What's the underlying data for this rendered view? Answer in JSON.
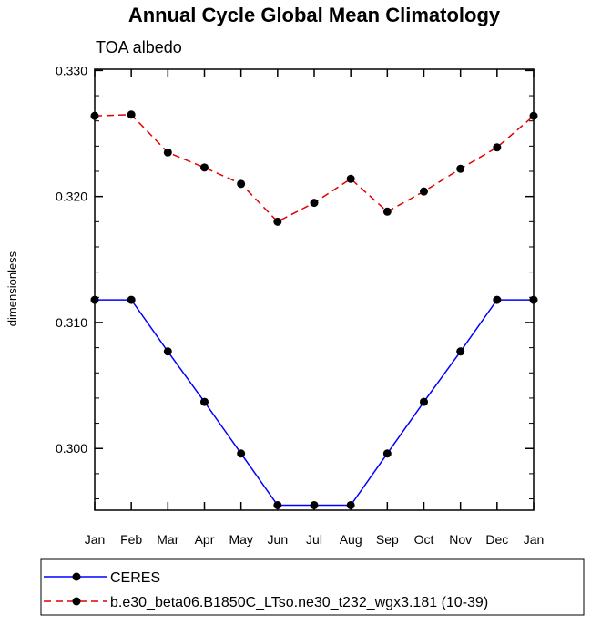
{
  "chart_data": {
    "type": "line",
    "title": "Annual Cycle Global Mean Climatology",
    "subtitle": "TOA albedo",
    "xlabel": "",
    "ylabel": "dimensionless",
    "categories": [
      "Jan",
      "Feb",
      "Mar",
      "Apr",
      "May",
      "Jun",
      "Jul",
      "Aug",
      "Sep",
      "Oct",
      "Nov",
      "Dec",
      "Jan"
    ],
    "ylim": [
      0.2951,
      0.3301
    ],
    "yticks": [
      "0.300",
      "0.310",
      "0.320",
      "0.330"
    ],
    "legend_position": "bottom",
    "grid": false,
    "series": [
      {
        "name": "CERES",
        "color": "#0000ff",
        "dash": "solid",
        "marker": "filled-circle",
        "values": [
          0.3118,
          0.3118,
          0.3077,
          0.3037,
          0.2996,
          0.2955,
          0.2955,
          0.2955,
          0.2996,
          0.3037,
          0.3077,
          0.3118,
          0.3118
        ]
      },
      {
        "name": "b.e30_beta06.B1850C_LTso.ne30_t232_wgx3.181 (10-39)",
        "color": "#e00000",
        "dash": "dashed",
        "marker": "filled-circle",
        "values": [
          0.3264,
          0.3265,
          0.3235,
          0.3223,
          0.321,
          0.318,
          0.3195,
          0.3214,
          0.3188,
          0.3204,
          0.3222,
          0.3239,
          0.3264
        ]
      }
    ]
  }
}
